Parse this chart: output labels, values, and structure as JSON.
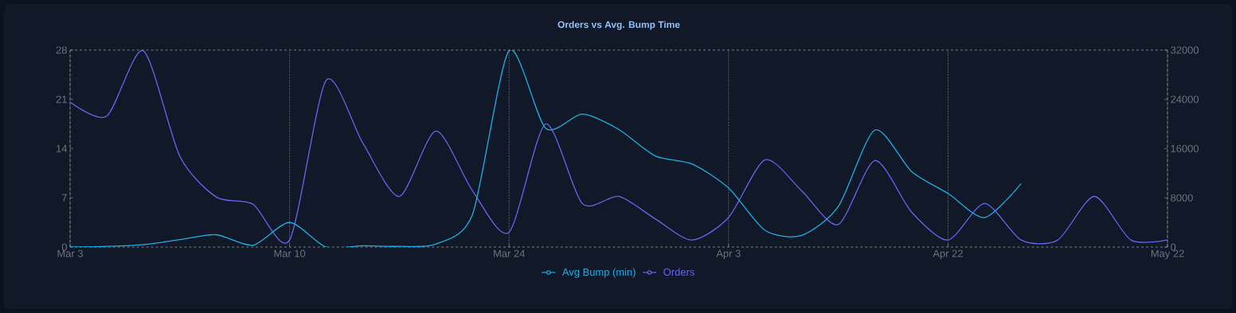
{
  "chart_data": {
    "type": "line",
    "title": "Orders vs Avg. Bump Time",
    "categories": [
      "Mar 3",
      null,
      null,
      null,
      null,
      null,
      "Mar 10",
      null,
      null,
      null,
      null,
      null,
      "Mar 24",
      null,
      null,
      null,
      null,
      null,
      "Apr 3",
      null,
      null,
      null,
      null,
      null,
      "Apr 22",
      null,
      null,
      null,
      null,
      null,
      "May 22"
    ],
    "series": [
      {
        "name": "Avg Bump (min)",
        "color": "#1cb0e6",
        "axis": "y2",
        "values": [
          0,
          100,
          400,
          1200,
          2000,
          300,
          4000,
          0,
          200,
          100,
          500,
          5300,
          31900,
          19300,
          21600,
          19100,
          14800,
          13500,
          9600,
          2700,
          1900,
          6600,
          19000,
          12300,
          8700,
          4800,
          10300,
          null,
          null,
          null,
          null
        ]
      },
      {
        "name": "Orders",
        "color": "#6366f1",
        "values": [
          20.6,
          18.6,
          27.9,
          12.9,
          7.1,
          6.1,
          1.0,
          23.7,
          14.8,
          7.2,
          16.5,
          8.0,
          2.1,
          17.5,
          6.2,
          7.2,
          4.0,
          1.0,
          4.2,
          12.4,
          8.0,
          3.2,
          12.3,
          5.0,
          1.0,
          6.2,
          1.0,
          1.0,
          7.2,
          1.0,
          1.0
        ]
      }
    ],
    "ylim": [
      0,
      28
    ],
    "yticks": [
      0,
      7,
      14,
      21,
      28
    ],
    "y2lim": [
      0,
      32000
    ],
    "y2ticks": [
      0,
      8000,
      16000,
      24000,
      32000
    ],
    "grid": "x",
    "legend": "bottom"
  }
}
